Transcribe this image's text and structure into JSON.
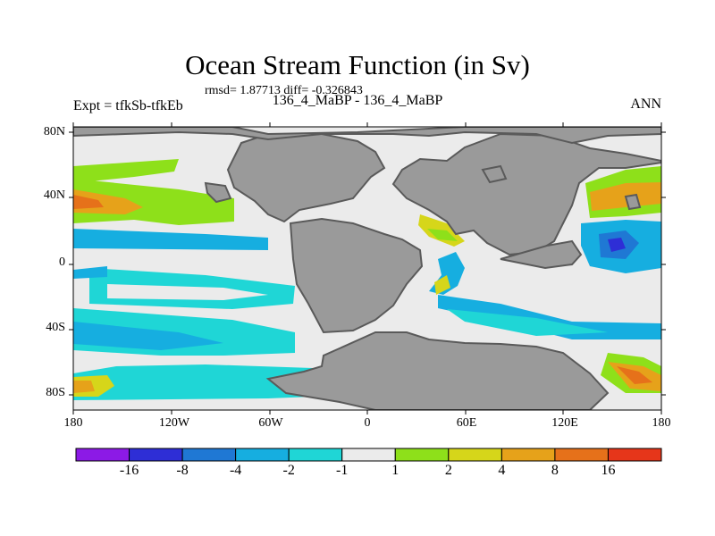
{
  "title": "Ocean Stream Function (in Sv)",
  "stats": "rmsd= 1.87713 diff= -0.326843",
  "left_label": "Expt = tfkSb-tfkEb",
  "center_label": "136_4_MaBP - 136_4_MaBP",
  "right_label": "ANN",
  "lat_ticks": [
    "80N",
    "40N",
    "0",
    "40S",
    "80S"
  ],
  "lon_ticks": [
    "180",
    "120W",
    "60W",
    "0",
    "60E",
    "120E",
    "180"
  ],
  "colorbar": {
    "colors": [
      "#8c1ae6",
      "#2e2ed6",
      "#1f78d4",
      "#16aee0",
      "#1fd6d6",
      "#ebebeb",
      "#8ee01a",
      "#d6d61a",
      "#e6a21a",
      "#e6711a",
      "#e6361a"
    ],
    "labels": [
      "-16",
      "-8",
      "-4",
      "-2",
      "-1",
      "1",
      "2",
      "4",
      "8",
      "16"
    ]
  },
  "map_colors": {
    "land": "#9a9a9a",
    "ocean": "#ebebeb",
    "coast": "#5a5a5a"
  }
}
